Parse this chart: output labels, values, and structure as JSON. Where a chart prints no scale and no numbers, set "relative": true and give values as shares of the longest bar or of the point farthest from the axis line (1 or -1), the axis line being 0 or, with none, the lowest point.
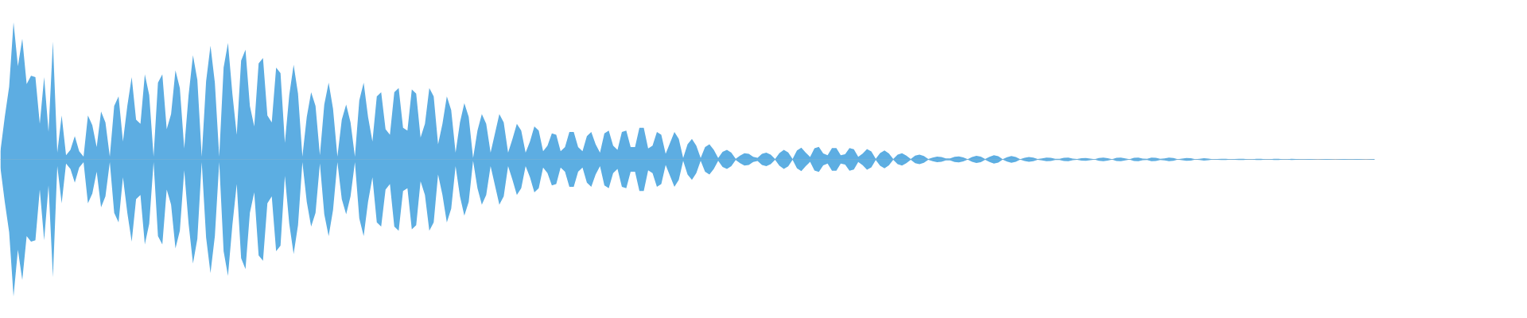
{
  "chart_data": {
    "type": "area",
    "relative": true,
    "categories": [
      null,
      null,
      null,
      null,
      null,
      null,
      null,
      null,
      null,
      null,
      null,
      null,
      null,
      null,
      null,
      null,
      null,
      null,
      null,
      null,
      null,
      null,
      null,
      null,
      null,
      null,
      null,
      null,
      null,
      null,
      null,
      null,
      null,
      null,
      null,
      null,
      null,
      null,
      null,
      null,
      null,
      null,
      null,
      null,
      null,
      null,
      null,
      null,
      null,
      null,
      null,
      null,
      null,
      null,
      null,
      null,
      null,
      null,
      null,
      null,
      null,
      null,
      null,
      null,
      null,
      null,
      null,
      null,
      null,
      null,
      null,
      null,
      null,
      null,
      null,
      null,
      null,
      null,
      null,
      null,
      null,
      null,
      null,
      null,
      null,
      null,
      null,
      null,
      null,
      null,
      null,
      null,
      null,
      null,
      null,
      null,
      null,
      null,
      null,
      null,
      null,
      null,
      null,
      null,
      null,
      null,
      null,
      null,
      null,
      null,
      null,
      null,
      null,
      null,
      null,
      null,
      null,
      null,
      null,
      null,
      null,
      null,
      null,
      null,
      null,
      null,
      null,
      null,
      null,
      null,
      null,
      null,
      null,
      null,
      null,
      null,
      null,
      null,
      null,
      null,
      null,
      null,
      null,
      null,
      null,
      null,
      null,
      null,
      null,
      null,
      null,
      null,
      null,
      null,
      null,
      null,
      null,
      null,
      null,
      null,
      null,
      null,
      null,
      null,
      null,
      null,
      null,
      null,
      null,
      null,
      null,
      null,
      null,
      null,
      null,
      null,
      null,
      null,
      null,
      null,
      null,
      null,
      null,
      null,
      null,
      null,
      null,
      null,
      null,
      null,
      null,
      null,
      null,
      null,
      null,
      null,
      null,
      null,
      null,
      null,
      null,
      null,
      null,
      null,
      null,
      null,
      null,
      null,
      null,
      null,
      null,
      null,
      null,
      null,
      null,
      null,
      null,
      null,
      null,
      null,
      null,
      null,
      null,
      null,
      null,
      null,
      null,
      null,
      null,
      null,
      null,
      null,
      null,
      null,
      null,
      null,
      null,
      null,
      null,
      null,
      null,
      null,
      null,
      null,
      null,
      null,
      null,
      null,
      null,
      null,
      null,
      null,
      null,
      null,
      null,
      null,
      null,
      null,
      null,
      null,
      null,
      null,
      null,
      null,
      null,
      null,
      null,
      null,
      null,
      null,
      null,
      null,
      null,
      null,
      null,
      null,
      null,
      null,
      null,
      null,
      null,
      null,
      null,
      null,
      null,
      null,
      null,
      null,
      null,
      null,
      null,
      null,
      null,
      null,
      null,
      null,
      null,
      null,
      null,
      null,
      null,
      null,
      null,
      null,
      null,
      null,
      null,
      null,
      null,
      null,
      null,
      null,
      null,
      null,
      null
    ],
    "series": [
      {
        "color": "#5dade2",
        "values": [
          0.06,
          0.31,
          0.53,
          1,
          0.68,
          0.88,
          0.55,
          0.61,
          0.6,
          0.26,
          0.6,
          0.2,
          0.86,
          0.05,
          0.32,
          0.03,
          0.07,
          0.17,
          0.06,
          0.02,
          0.32,
          0.25,
          0.09,
          0.35,
          0.27,
          0.02,
          0.39,
          0.46,
          0.13,
          0.39,
          0.6,
          0.29,
          0.26,
          0.62,
          0.47,
          0.02,
          0.56,
          0.62,
          0.22,
          0.33,
          0.65,
          0.52,
          0.08,
          0.47,
          0.76,
          0.58,
          0.02,
          0.57,
          0.83,
          0.56,
          0.02,
          0.67,
          0.85,
          0.48,
          0.18,
          0.72,
          0.8,
          0.39,
          0.24,
          0.7,
          0.74,
          0.32,
          0.27,
          0.67,
          0.63,
          0.12,
          0.47,
          0.69,
          0.48,
          0.02,
          0.31,
          0.49,
          0.39,
          0.03,
          0.4,
          0.56,
          0.37,
          0.02,
          0.29,
          0.4,
          0.27,
          0.02,
          0.43,
          0.56,
          0.31,
          0.13,
          0.46,
          0.49,
          0.22,
          0.18,
          0.49,
          0.52,
          0.23,
          0.21,
          0.51,
          0.48,
          0.16,
          0.26,
          0.52,
          0.46,
          0.11,
          0.26,
          0.46,
          0.36,
          0.05,
          0.27,
          0.41,
          0.31,
          0.01,
          0.21,
          0.33,
          0.26,
          0.05,
          0.19,
          0.33,
          0.27,
          0.05,
          0.15,
          0.26,
          0.21,
          0.05,
          0.13,
          0.24,
          0.21,
          0.06,
          0.1,
          0.19,
          0.18,
          0.06,
          0.09,
          0.2,
          0.2,
          0.09,
          0.06,
          0.17,
          0.2,
          0.11,
          0.05,
          0.19,
          0.21,
          0.1,
          0.07,
          0.2,
          0.21,
          0.09,
          0.09,
          0.23,
          0.23,
          0.08,
          0.1,
          0.2,
          0.18,
          0.04,
          0.12,
          0.2,
          0.15,
          0.01,
          0.11,
          0.15,
          0.1,
          0.01,
          0.09,
          0.11,
          0.07,
          0.01,
          0.055,
          0.07,
          0.05,
          0.005,
          0.027,
          0.045,
          0.04,
          0.019,
          0.012,
          0.04,
          0.05,
          0.035,
          0.003,
          0.047,
          0.07,
          0.051,
          0.003,
          0.065,
          0.085,
          0.05,
          0.018,
          0.081,
          0.092,
          0.044,
          0.031,
          0.083,
          0.083,
          0.031,
          0.038,
          0.082,
          0.074,
          0.019,
          0.042,
          0.075,
          0.058,
          0.004,
          0.046,
          0.065,
          0.043,
          0.003,
          0.035,
          0.045,
          0.028,
          0.003,
          0.027,
          0.035,
          0.024,
          0.003,
          0.013,
          0.021,
          0.018,
          0.007,
          0.007,
          0.019,
          0.022,
          0.014,
          0.002,
          0.017,
          0.026,
          0.021,
          0.003,
          0.019,
          0.03,
          0.023,
          0.002,
          0.016,
          0.024,
          0.018,
          0.002,
          0.012,
          0.017,
          0.013,
          0.003,
          0.007,
          0.013,
          0.012,
          0.005,
          0.005,
          0.012,
          0.013,
          0.006,
          0.003,
          0.009,
          0.01,
          0.006,
          0.002,
          0.01,
          0.013,
          0.008,
          0.002,
          0.011,
          0.013,
          0.007,
          0.002,
          0.011,
          0.013,
          0.006,
          0.005,
          0.013,
          0.012,
          0.004,
          0.007,
          0.013,
          0.01,
          0.002,
          0.006,
          0.01,
          0.008,
          0.002,
          0.005,
          0.008,
          0.006,
          0.002,
          0.003,
          0.005,
          0.004,
          0.001,
          0.003,
          0.005,
          0.004,
          0.001,
          0.002,
          0.005,
          0.004,
          0.002,
          0.002,
          0.004,
          0.004,
          0.001,
          0.002,
          0.004,
          0.003,
          0.001,
          0.002,
          0.003,
          0.002,
          0,
          0.002,
          0.003,
          0.002,
          0,
          0.002,
          0.003,
          0.002,
          0.001,
          0.003,
          0.002,
          0,
          0.002,
          0.003
        ]
      },
      {
        "color": "#5caee2",
        "values": [
          -0.06,
          -0.31,
          -0.53,
          -1,
          -0.66,
          -0.88,
          -0.56,
          -0.6,
          -0.59,
          -0.22,
          -0.59,
          -0.19,
          -0.86,
          -0.05,
          -0.32,
          -0.03,
          -0.07,
          -0.17,
          -0.06,
          -0.02,
          -0.32,
          -0.25,
          -0.09,
          -0.35,
          -0.27,
          -0.02,
          -0.39,
          -0.46,
          -0.13,
          -0.39,
          -0.6,
          -0.29,
          -0.26,
          -0.62,
          -0.47,
          -0.02,
          -0.56,
          -0.62,
          -0.22,
          -0.33,
          -0.65,
          -0.52,
          -0.08,
          -0.47,
          -0.76,
          -0.58,
          -0.02,
          -0.57,
          -0.83,
          -0.56,
          -0.02,
          -0.67,
          -0.85,
          -0.48,
          -0.18,
          -0.72,
          -0.8,
          -0.39,
          -0.24,
          -0.7,
          -0.74,
          -0.32,
          -0.27,
          -0.67,
          -0.63,
          -0.12,
          -0.47,
          -0.69,
          -0.48,
          -0.02,
          -0.31,
          -0.49,
          -0.39,
          -0.03,
          -0.4,
          -0.56,
          -0.37,
          -0.02,
          -0.29,
          -0.4,
          -0.27,
          -0.02,
          -0.43,
          -0.56,
          -0.31,
          -0.13,
          -0.46,
          -0.49,
          -0.22,
          -0.18,
          -0.49,
          -0.52,
          -0.23,
          -0.21,
          -0.51,
          -0.48,
          -0.16,
          -0.26,
          -0.52,
          -0.46,
          -0.11,
          -0.26,
          -0.46,
          -0.36,
          -0.05,
          -0.27,
          -0.41,
          -0.31,
          -0.01,
          -0.21,
          -0.33,
          -0.26,
          -0.05,
          -0.19,
          -0.33,
          -0.27,
          -0.05,
          -0.15,
          -0.26,
          -0.21,
          -0.05,
          -0.13,
          -0.24,
          -0.21,
          -0.06,
          -0.1,
          -0.19,
          -0.18,
          -0.06,
          -0.09,
          -0.2,
          -0.2,
          -0.09,
          -0.06,
          -0.17,
          -0.2,
          -0.11,
          -0.05,
          -0.19,
          -0.21,
          -0.1,
          -0.07,
          -0.2,
          -0.21,
          -0.09,
          -0.09,
          -0.23,
          -0.23,
          -0.08,
          -0.1,
          -0.2,
          -0.18,
          -0.04,
          -0.12,
          -0.2,
          -0.15,
          -0.01,
          -0.11,
          -0.15,
          -0.1,
          -0.01,
          -0.09,
          -0.11,
          -0.07,
          -0.01,
          -0.055,
          -0.07,
          -0.05,
          -0.005,
          -0.027,
          -0.045,
          -0.04,
          -0.019,
          -0.012,
          -0.04,
          -0.05,
          -0.035,
          -0.003,
          -0.047,
          -0.07,
          -0.051,
          -0.003,
          -0.065,
          -0.085,
          -0.05,
          -0.018,
          -0.081,
          -0.092,
          -0.044,
          -0.031,
          -0.083,
          -0.083,
          -0.031,
          -0.038,
          -0.082,
          -0.074,
          -0.019,
          -0.042,
          -0.075,
          -0.058,
          -0.004,
          -0.046,
          -0.065,
          -0.043,
          -0.003,
          -0.035,
          -0.045,
          -0.028,
          -0.003,
          -0.027,
          -0.035,
          -0.024,
          -0.003,
          -0.013,
          -0.021,
          -0.018,
          -0.007,
          -0.007,
          -0.019,
          -0.022,
          -0.014,
          -0.002,
          -0.017,
          -0.026,
          -0.021,
          -0.003,
          -0.019,
          -0.03,
          -0.023,
          -0.002,
          -0.016,
          -0.024,
          -0.018,
          -0.002,
          -0.012,
          -0.017,
          -0.013,
          -0.003,
          -0.007,
          -0.013,
          -0.012,
          -0.005,
          -0.005,
          -0.012,
          -0.013,
          -0.006,
          -0.003,
          -0.009,
          -0.01,
          -0.006,
          -0.002,
          -0.01,
          -0.013,
          -0.008,
          -0.002,
          -0.011,
          -0.013,
          -0.007,
          -0.002,
          -0.011,
          -0.013,
          -0.006,
          -0.005,
          -0.013,
          -0.012,
          -0.004,
          -0.007,
          -0.013,
          -0.01,
          -0.002,
          -0.006,
          -0.01,
          -0.008,
          -0.002,
          -0.005,
          -0.008,
          -0.006,
          -0.002,
          -0.003,
          -0.005,
          -0.004,
          -0.001,
          -0.003,
          -0.005,
          -0.004,
          -0.001,
          -0.002,
          -0.005,
          -0.004,
          -0.002,
          -0.002,
          -0.004,
          -0.004,
          -0.001,
          -0.002,
          -0.004,
          -0.003,
          -0.001,
          -0.002,
          -0.003,
          -0.002,
          0,
          -0.002,
          -0.003,
          -0.002,
          0,
          -0.002,
          -0.003,
          -0.002,
          -0.001,
          -0.003,
          -0.002,
          0,
          -0.002,
          -0.003
        ]
      }
    ]
  }
}
